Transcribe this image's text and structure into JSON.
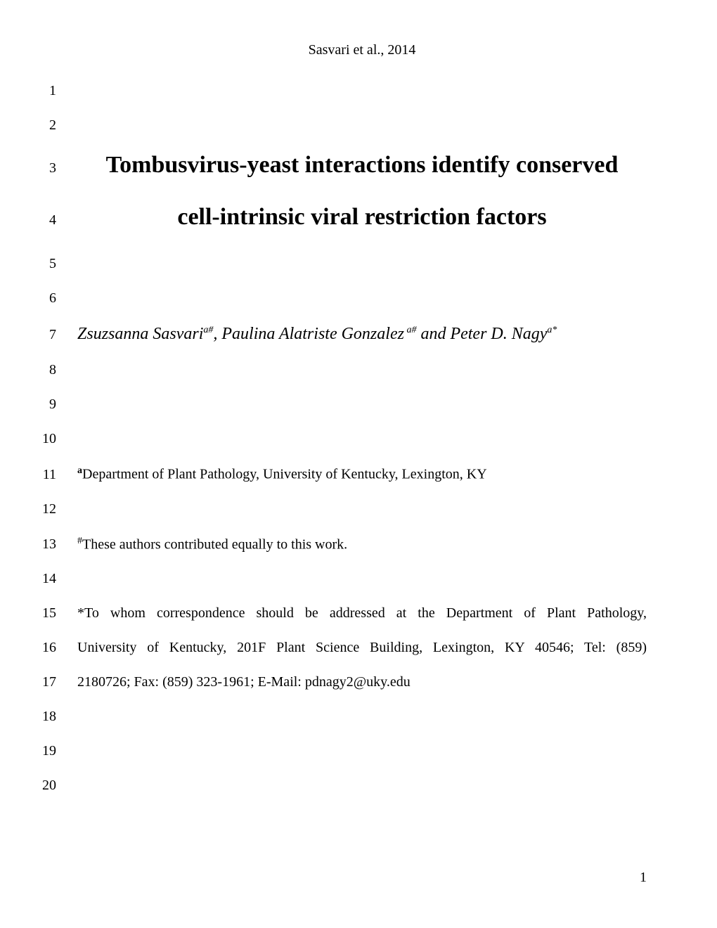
{
  "running_header": "Sasvari et al., 2014",
  "lines": {
    "1": "",
    "2": "",
    "3": "Tombusvirus-yeast interactions identify conserved",
    "4": "cell-intrinsic viral restriction factors",
    "5": "",
    "6": "",
    "7_author1": "Zsuzsanna Sasvari",
    "7_sup1": "a#",
    "7_sep1": ", ",
    "7_author2": "Paulina Alatriste Gonzalez",
    "7_sup2": " a#",
    "7_sep2": " and ",
    "7_author3": "Peter D. Nagy",
    "7_sup3": "a*",
    "8": "",
    "9": "",
    "10": "",
    "11_sup": "a",
    "11": "Department of Plant Pathology, University of Kentucky, Lexington, KY",
    "12": "",
    "13_sup": "#",
    "13": "These authors contributed equally to this work.",
    "14": "",
    "15": "*To whom correspondence should be addressed at the Department of Plant Pathology,",
    "16": "University of Kentucky, 201F Plant Science Building, Lexington, KY 40546; Tel: (859)",
    "17": "2180726; Fax: (859) 323-1961; E-Mail: pdnagy2@uky.edu",
    "18": "",
    "19": "",
    "20": ""
  },
  "line_numbers": [
    "1",
    "2",
    "3",
    "4",
    "5",
    "6",
    "7",
    "8",
    "9",
    "10",
    "11",
    "12",
    "13",
    "14",
    "15",
    "16",
    "17",
    "18",
    "19",
    "20"
  ],
  "page_number": "1",
  "colors": {
    "background": "#ffffff",
    "text": "#000000"
  },
  "fonts": {
    "family": "Times New Roman",
    "title_size": 34,
    "body_size": 20,
    "authors_size": 24,
    "line_number_size": 20
  }
}
